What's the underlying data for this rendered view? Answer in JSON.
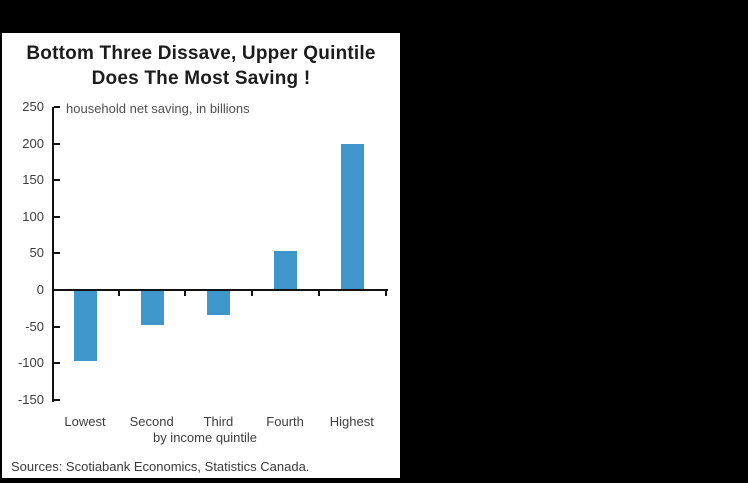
{
  "window": {
    "background_color": "#000000",
    "panel_color": "#ffffff"
  },
  "chart": {
    "title_lines": [
      "Bottom Three Dissave, Upper Quintile",
      "Does The Most Saving !"
    ],
    "inner_label": "household net saving, in billions",
    "xlabel": "by income quintile",
    "source": "Sources: Scotiabank Economics, Statistics Canada.",
    "bar_color": "#3f96cb",
    "axis_color": "#121212"
  },
  "chart_data": {
    "type": "bar",
    "title": "Bottom Three Dissave, Upper Quintile Does The Most Saving !",
    "subtitle": "household net saving, in billions",
    "categories": [
      "Lowest",
      "Second",
      "Third",
      "Fourth",
      "Highest"
    ],
    "values": [
      -96,
      -46,
      -33,
      53,
      200
    ],
    "xlabel": "by income quintile",
    "ylabel": "household net saving, in billions",
    "ylim": [
      -150,
      250
    ],
    "yticks": [
      250,
      200,
      150,
      100,
      50,
      0,
      -50,
      -100,
      -150
    ],
    "grid": false,
    "legend": false,
    "source": "Sources: Scotiabank Economics, Statistics Canada."
  }
}
